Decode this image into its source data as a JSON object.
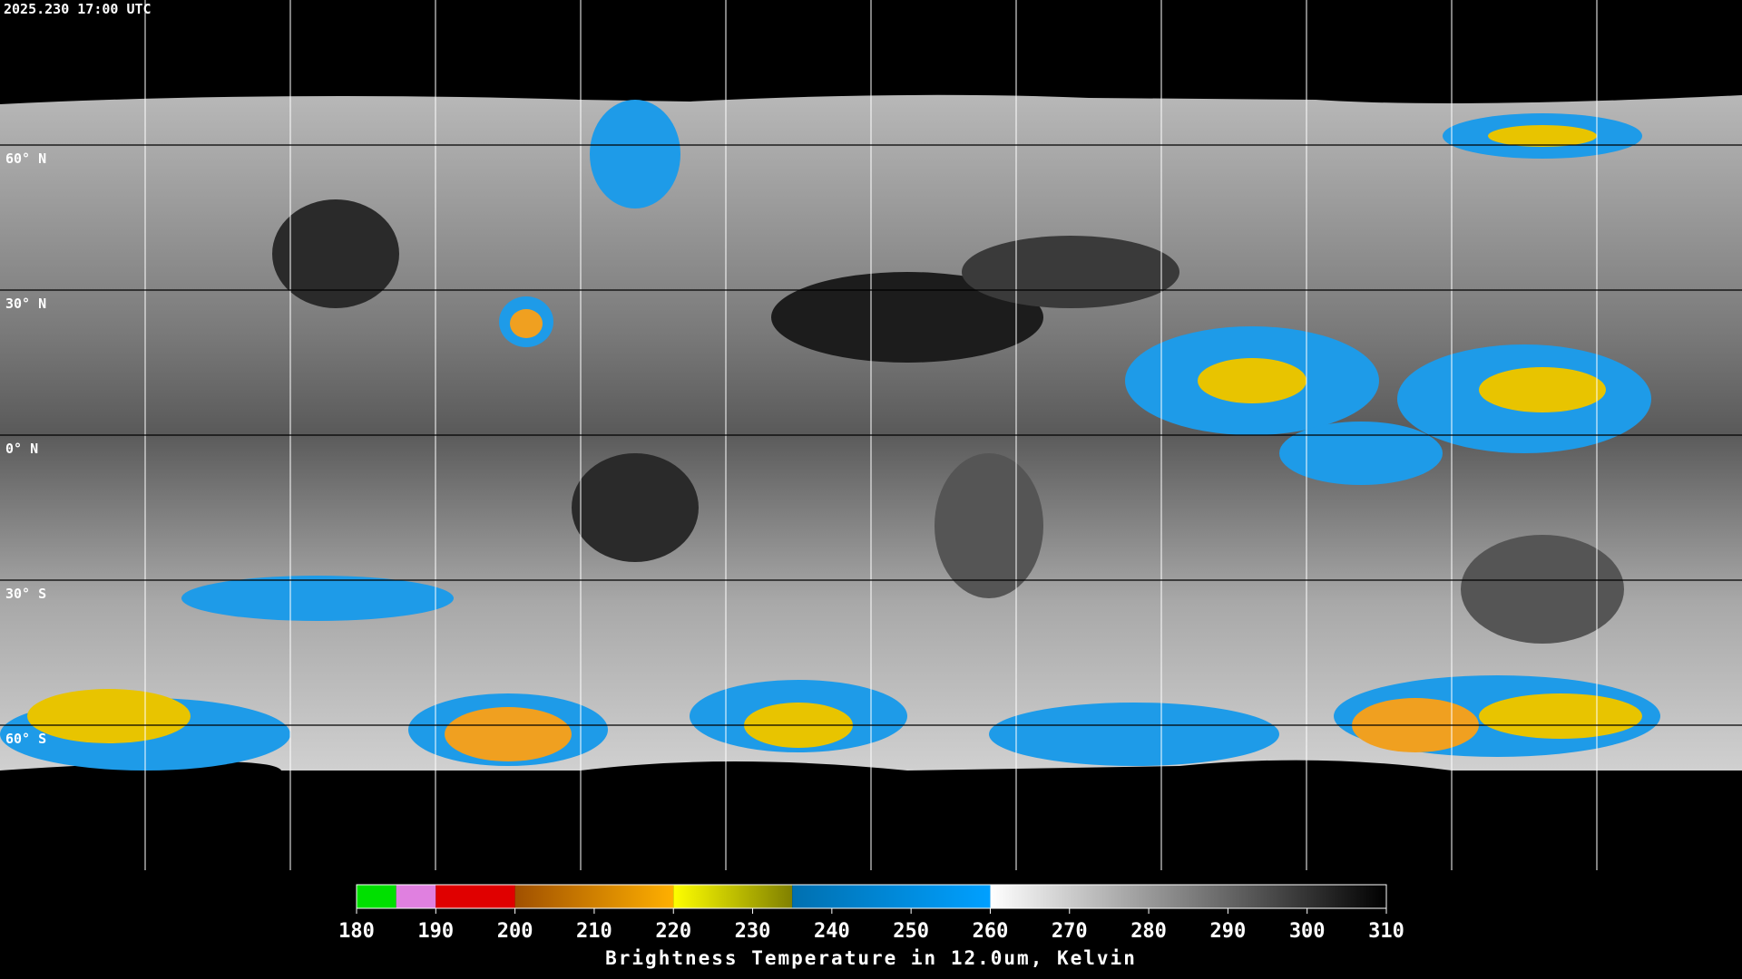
{
  "header": {
    "title": "2025.230 17:00 UTC"
  },
  "map": {
    "lat_labels": [
      "60° N",
      "30° N",
      "0° N",
      "30° S",
      "60° S"
    ]
  },
  "colorbar": {
    "label": "Brightness Temperature in 12.0um, Kelvin",
    "lim": [
      180,
      310
    ],
    "ticks": [
      180,
      190,
      200,
      210,
      220,
      230,
      240,
      250,
      260,
      270,
      280,
      290,
      300,
      310
    ],
    "segments": [
      {
        "from": 180,
        "to": 185,
        "color_from": "#00e000",
        "color_to": "#00e000"
      },
      {
        "from": 185,
        "to": 190,
        "color_from": "#e080e0",
        "color_to": "#e080e0"
      },
      {
        "from": 190,
        "to": 200,
        "color_from": "#e00000",
        "color_to": "#e00000"
      },
      {
        "from": 200,
        "to": 220,
        "color_from": "#a05000",
        "color_to": "#ffb000"
      },
      {
        "from": 220,
        "to": 235,
        "color_from": "#ffff00",
        "color_to": "#808000"
      },
      {
        "from": 235,
        "to": 260,
        "color_from": "#0070b0",
        "color_to": "#00a0ff"
      },
      {
        "from": 260,
        "to": 310,
        "color_from": "#ffffff",
        "color_to": "#000000"
      }
    ]
  }
}
